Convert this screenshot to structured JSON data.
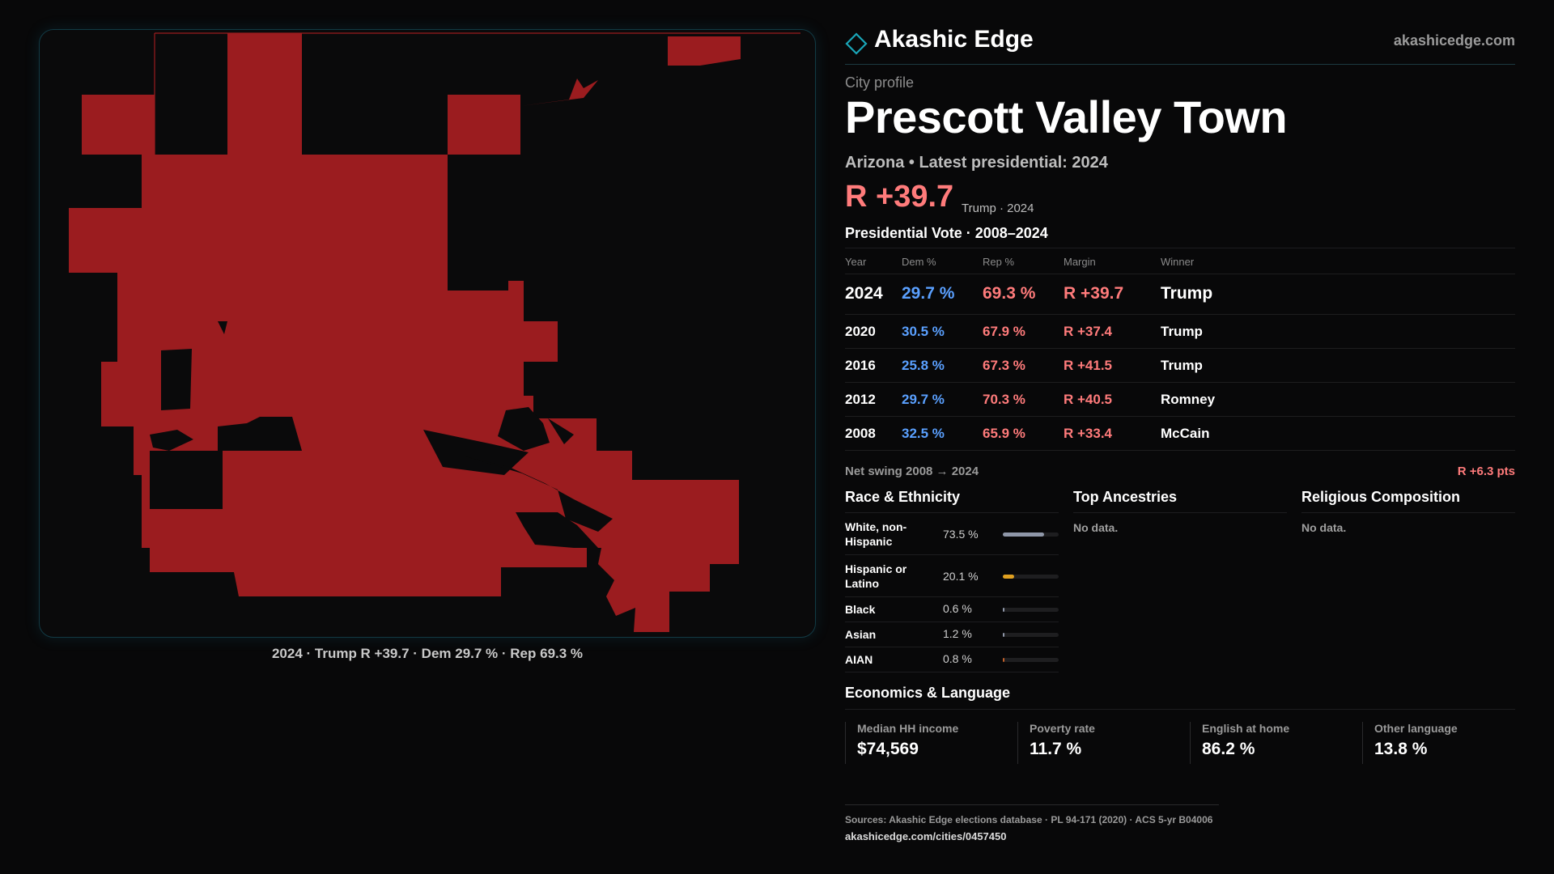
{
  "brand": {
    "name": "Akashic Edge",
    "url": "akashicedge.com",
    "icon": "diamond-icon"
  },
  "map": {
    "caption": "2024 · Trump R +39.7 · Dem 29.7 % · Rep 69.3 %",
    "fill_color": "#9b1c1f",
    "border_color": "#123a44"
  },
  "profile": {
    "kicker": "City profile",
    "title": "Prescott Valley Town",
    "subline": "Arizona • Latest presidential: 2024",
    "margin": "R +39.7",
    "margin_note": "Trump · 2024"
  },
  "vote": {
    "title": "Presidential Vote · 2008–2024",
    "headers": {
      "year": "Year",
      "dem": "Dem %",
      "rep": "Rep %",
      "margin": "Margin",
      "winner": "Winner"
    },
    "rows": [
      {
        "year": "2024",
        "dem": "29.7 %",
        "rep": "69.3 %",
        "margin": "R +39.7",
        "winner": "Trump"
      },
      {
        "year": "2020",
        "dem": "30.5 %",
        "rep": "67.9 %",
        "margin": "R +37.4",
        "winner": "Trump"
      },
      {
        "year": "2016",
        "dem": "25.8 %",
        "rep": "67.3 %",
        "margin": "R +41.5",
        "winner": "Trump"
      },
      {
        "year": "2012",
        "dem": "29.7 %",
        "rep": "70.3 %",
        "margin": "R +40.5",
        "winner": "Romney"
      },
      {
        "year": "2008",
        "dem": "32.5 %",
        "rep": "65.9 %",
        "margin": "R +33.4",
        "winner": "McCain"
      }
    ],
    "net_swing_label": "Net swing 2008 → 2024",
    "net_swing_value": "R +6.3 pts"
  },
  "race": {
    "title": "Race & Ethnicity",
    "rows": [
      {
        "label": "White, non-Hispanic",
        "value": "73.5 %",
        "pct": 73.5,
        "color": "#8f97a8"
      },
      {
        "label": "Hispanic or Latino",
        "value": "20.1 %",
        "pct": 20.1,
        "color": "#e0a020"
      },
      {
        "label": "Black",
        "value": "0.6 %",
        "pct": 0.6,
        "color": "#8f97a8"
      },
      {
        "label": "Asian",
        "value": "1.2 %",
        "pct": 1.2,
        "color": "#8f97a8"
      },
      {
        "label": "AIAN",
        "value": "0.8 %",
        "pct": 0.8,
        "color": "#c0602a"
      }
    ]
  },
  "ancestries": {
    "title": "Top Ancestries",
    "empty": "No data."
  },
  "religion": {
    "title": "Religious Composition",
    "empty": "No data."
  },
  "economics": {
    "title": "Economics & Language",
    "cells": [
      {
        "label": "Median HH income",
        "value": "$74,569"
      },
      {
        "label": "Poverty rate",
        "value": "11.7 %"
      },
      {
        "label": "English at home",
        "value": "86.2 %"
      },
      {
        "label": "Other language",
        "value": "13.8 %"
      }
    ]
  },
  "sources": {
    "text": "Sources: Akashic Edge elections database · PL 94-171 (2020) · ACS 5-yr B04006",
    "url": "akashicedge.com/cities/0457450"
  }
}
